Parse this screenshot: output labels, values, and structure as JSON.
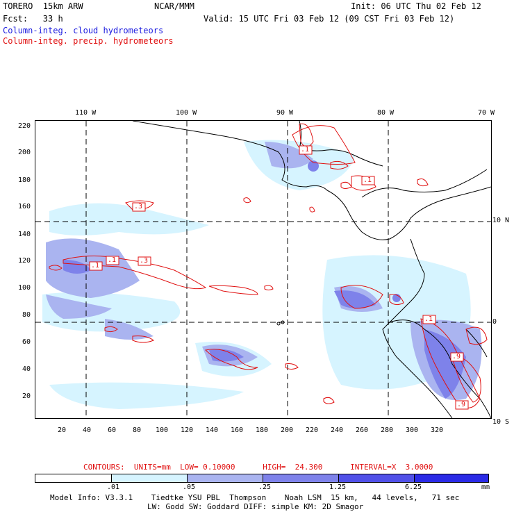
{
  "header": {
    "title": "TORERO  15km ARW",
    "center": "NCAR/MMM",
    "init": "Init: 06 UTC Thu 02 Feb 12",
    "fcst": "Fcst:   33 h",
    "valid": "Valid: 15 UTC Fri 03 Feb 12 (09 CST Fri 03 Feb 12)",
    "field1": "Column-integ. cloud hydrometeors",
    "field2": "Column-integ. precip. hydrometeors"
  },
  "map": {
    "top_lon_labels": [
      "110 W",
      "100 W",
      "90 W",
      "80 W",
      "70 W"
    ],
    "right_lat_labels": [
      "10 N",
      "0",
      "10 S"
    ],
    "y_ticks": [
      "220",
      "200",
      "180",
      "160",
      "140",
      "120",
      "100",
      "80",
      "60",
      "40",
      "20"
    ],
    "x_ticks": [
      "20",
      "40",
      "60",
      "80",
      "100",
      "120",
      "140",
      "160",
      "180",
      "200",
      "220",
      "240",
      "260",
      "280",
      "300",
      "320"
    ],
    "contour_labels": [
      ".1",
      ".1",
      ".3",
      ".1",
      ".1",
      ".3",
      ".1",
      ".9",
      ".9"
    ]
  },
  "contours_line": "CONTOURS:  UNITS=mm  LOW= 0.10000      HIGH=  24.300      INTERVAL=X  3.0000",
  "colorbar": {
    "labels": [
      ".01",
      ".05",
      ".25",
      "1.25",
      "6.25"
    ],
    "unit": "mm",
    "colors": [
      "#ffffff",
      "#d6f4ff",
      "#aab4f0",
      "#7e82ea",
      "#5050e8",
      "#2a2ae6"
    ]
  },
  "footer": {
    "line1": "Model Info: V3.3.1    Tiedtke YSU PBL  Thompson    Noah LSM  15 km,   44 levels,   71 sec",
    "line2": "LW: Godd SW: Goddard DIFF: simple KM: 2D Smagor"
  },
  "colors": {
    "cloud": "#1a1adf",
    "precip": "#e01010"
  }
}
